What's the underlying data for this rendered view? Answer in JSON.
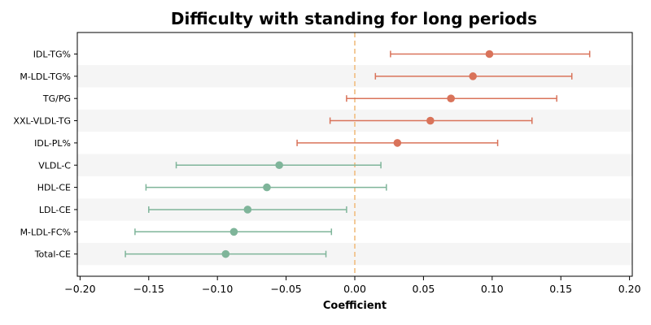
{
  "chart_data": {
    "type": "forest",
    "title": "Difficulty with standing for long periods",
    "xlabel": "Coefficient",
    "ylabel": "",
    "xlim": [
      -0.202,
      0.202
    ],
    "xticks": [
      -0.2,
      -0.15,
      -0.1,
      -0.05,
      0.0,
      0.05,
      0.1,
      0.15,
      0.2
    ],
    "xtick_labels": [
      "−0.20",
      "−0.15",
      "−0.10",
      "−0.05",
      "0.00",
      "0.05",
      "0.10",
      "0.15",
      "0.20"
    ],
    "reference_line": 0.0,
    "grid": false,
    "rows": [
      {
        "label": "IDL-TG%",
        "estimate": 0.098,
        "lower": 0.026,
        "upper": 0.171
      },
      {
        "label": "M-LDL-TG%",
        "estimate": 0.086,
        "lower": 0.015,
        "upper": 0.158
      },
      {
        "label": "TG/PG",
        "estimate": 0.07,
        "lower": -0.006,
        "upper": 0.147
      },
      {
        "label": "XXL-VLDL-TG",
        "estimate": 0.055,
        "lower": -0.018,
        "upper": 0.129
      },
      {
        "label": "IDL-PL%",
        "estimate": 0.031,
        "lower": -0.042,
        "upper": 0.104
      },
      {
        "label": "VLDL-C",
        "estimate": -0.055,
        "lower": -0.13,
        "upper": 0.019
      },
      {
        "label": "HDL-CE",
        "estimate": -0.064,
        "lower": -0.152,
        "upper": 0.023
      },
      {
        "label": "LDL-CE",
        "estimate": -0.078,
        "lower": -0.15,
        "upper": -0.006
      },
      {
        "label": "M-LDL-FC%",
        "estimate": -0.088,
        "lower": -0.16,
        "upper": -0.017
      },
      {
        "label": "Total-CE",
        "estimate": -0.094,
        "lower": -0.167,
        "upper": -0.021
      }
    ],
    "colors": {
      "positive": "#d9735a",
      "negative": "#7fb59a",
      "reference_line": "#f2c48d",
      "row_band": "#f5f5f5",
      "axis": "#000000"
    }
  }
}
